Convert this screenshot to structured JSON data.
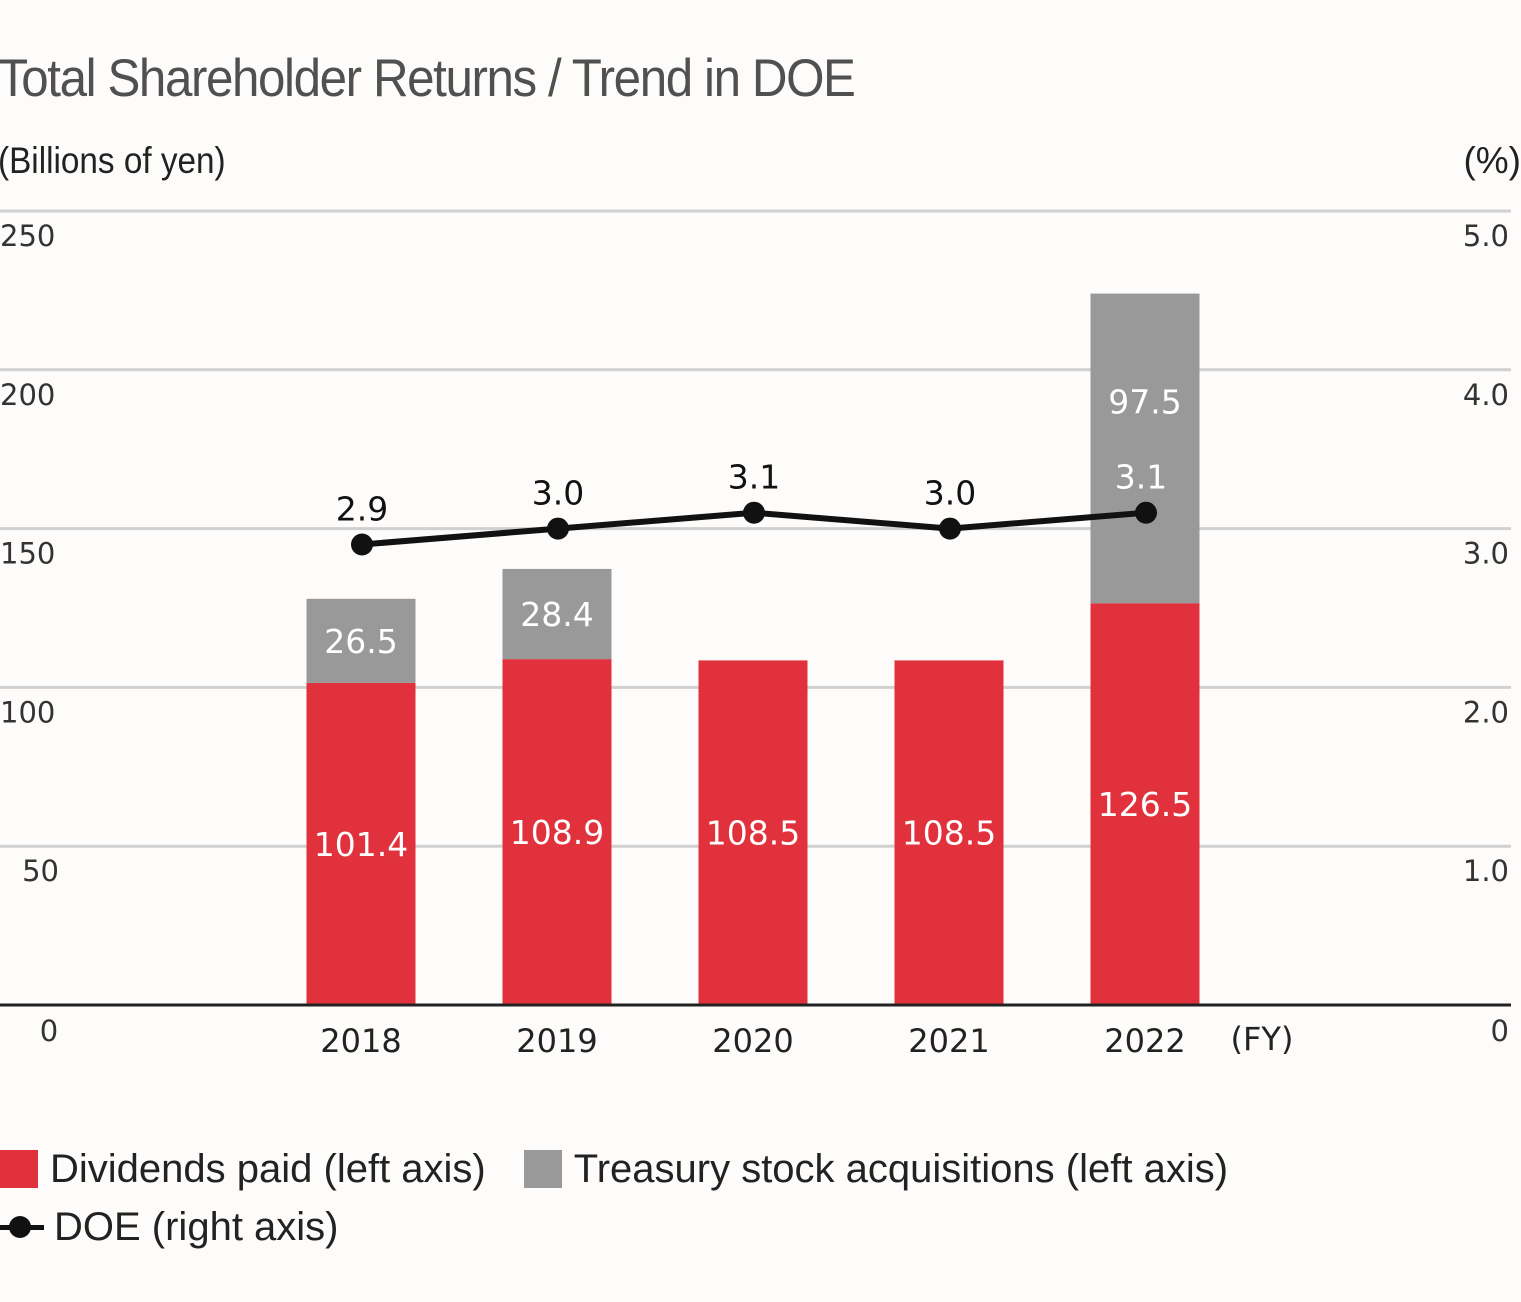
{
  "chart_data": {
    "type": "bar",
    "stacked": true,
    "title": "Total Shareholder Returns / Trend in DOE",
    "ylabel": "(Billions of yen)",
    "y2label": "(%)",
    "xlabel": "(FY)",
    "categories": [
      "2018",
      "2019",
      "2020",
      "2021",
      "2022"
    ],
    "ylim": [
      0,
      250
    ],
    "y2lim": [
      0,
      5.0
    ],
    "yticks": [
      "0",
      "50",
      "100",
      "150",
      "200",
      "250"
    ],
    "y2ticks": [
      "0",
      "1.0",
      "2.0",
      "3.0",
      "4.0",
      "5.0"
    ],
    "grid": true,
    "series": [
      {
        "name": "Dividends paid (left axis)",
        "type": "bar",
        "axis": "left",
        "color": "#e0313c",
        "values": [
          101.4,
          108.9,
          108.5,
          108.5,
          126.5
        ],
        "labels": [
          "101.4",
          "108.9",
          "108.5",
          "108.5",
          "126.5"
        ]
      },
      {
        "name": "Treasury stock acquisitions (left axis)",
        "type": "bar",
        "axis": "left",
        "color": "#999999",
        "values": [
          26.5,
          28.4,
          0,
          0,
          97.5
        ],
        "labels": [
          "26.5",
          "28.4",
          "",
          "",
          "97.5"
        ]
      },
      {
        "name": "DOE (right axis)",
        "type": "line",
        "axis": "right",
        "color": "#111111",
        "values": [
          2.9,
          3.0,
          3.1,
          3.0,
          3.1
        ],
        "labels": [
          "2.9",
          "3.0",
          "3.1",
          "3.0",
          "3.1"
        ]
      }
    ],
    "legend_position": "bottom-left"
  },
  "legend": {
    "dividends": "Dividends paid (left axis)",
    "treasury": "Treasury stock acquisitions (left axis)",
    "doe": "DOE (right axis)"
  }
}
